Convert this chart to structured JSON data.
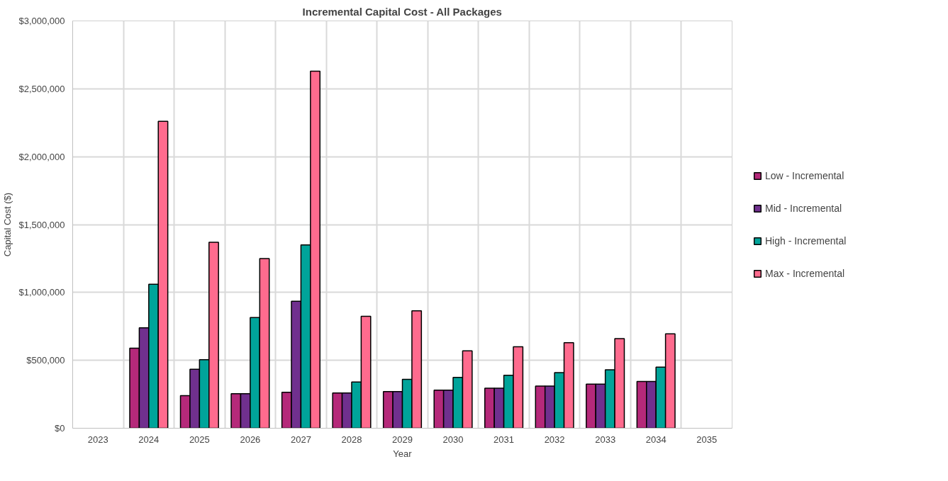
{
  "chart_data": {
    "type": "bar",
    "title": "Incremental Capital Cost - All Packages",
    "xlabel": "Year",
    "ylabel": "Capital Cost ($)",
    "categories": [
      "2023",
      "2024",
      "2025",
      "2026",
      "2027",
      "2028",
      "2029",
      "2030",
      "2031",
      "2032",
      "2033",
      "2034",
      "2035"
    ],
    "series": [
      {
        "name": "Low - Incremental",
        "color": "#b5297a",
        "values": [
          null,
          590000,
          240000,
          255000,
          265000,
          260000,
          270000,
          280000,
          295000,
          310000,
          325000,
          345000,
          null
        ]
      },
      {
        "name": "Mid - Incremental",
        "color": "#70308e",
        "values": [
          null,
          740000,
          435000,
          255000,
          935000,
          260000,
          270000,
          280000,
          295000,
          310000,
          325000,
          345000,
          null
        ]
      },
      {
        "name": "High - Incremental",
        "color": "#00a49a",
        "values": [
          null,
          1060000,
          505000,
          815000,
          1350000,
          340000,
          360000,
          375000,
          390000,
          410000,
          430000,
          450000,
          null
        ]
      },
      {
        "name": "Max - Incremental",
        "color": "#ff6b8e",
        "values": [
          null,
          2260000,
          1370000,
          1250000,
          2630000,
          825000,
          865000,
          570000,
          600000,
          630000,
          660000,
          695000,
          null
        ]
      }
    ],
    "ylim": [
      0,
      3000000
    ],
    "yticks": [
      {
        "value": 0,
        "label": "$0"
      },
      {
        "value": 500000,
        "label": "$500,000"
      },
      {
        "value": 1000000,
        "label": "$1,000,000"
      },
      {
        "value": 1500000,
        "label": "$1,500,000"
      },
      {
        "value": 2000000,
        "label": "$2,000,000"
      },
      {
        "value": 2500000,
        "label": "$2,500,000"
      },
      {
        "value": 3000000,
        "label": "$3,000,000"
      }
    ],
    "grid": true,
    "legend": "right"
  }
}
